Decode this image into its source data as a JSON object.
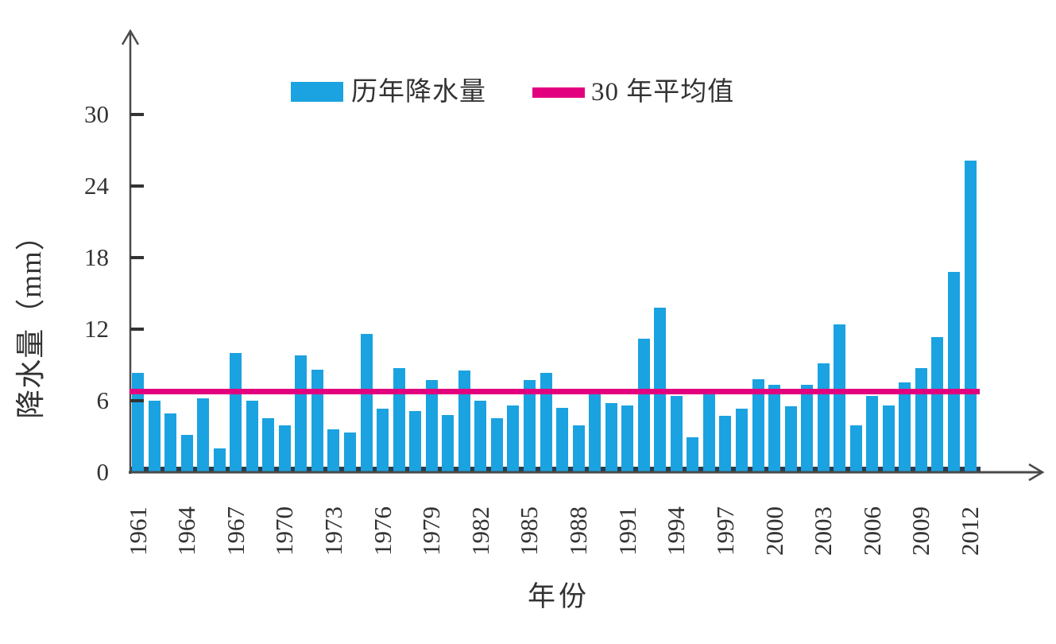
{
  "chart_data": {
    "type": "bar",
    "title": "",
    "xlabel": "年份",
    "ylabel": "降水量（mm）",
    "categories": [
      1961,
      1962,
      1963,
      1964,
      1965,
      1966,
      1967,
      1968,
      1969,
      1970,
      1971,
      1972,
      1973,
      1974,
      1975,
      1976,
      1977,
      1978,
      1979,
      1980,
      1981,
      1982,
      1983,
      1984,
      1985,
      1986,
      1987,
      1988,
      1989,
      1990,
      1991,
      1992,
      1993,
      1994,
      1995,
      1996,
      1997,
      1998,
      1999,
      2000,
      2001,
      2002,
      2003,
      2004,
      2005,
      2006,
      2007,
      2008,
      2009,
      2010,
      2011,
      2012
    ],
    "series": [
      {
        "name": "历年降水量",
        "type": "bar",
        "color": "#1BA2E0",
        "values": [
          8.3,
          6.0,
          4.9,
          3.1,
          6.2,
          2.0,
          10.0,
          6.0,
          4.5,
          3.9,
          9.8,
          8.6,
          3.6,
          3.3,
          11.6,
          5.3,
          8.7,
          5.1,
          7.7,
          4.8,
          8.5,
          6.0,
          4.5,
          5.6,
          7.7,
          8.3,
          5.4,
          3.9,
          6.5,
          5.8,
          5.6,
          11.2,
          13.8,
          6.4,
          2.9,
          6.6,
          4.7,
          5.3,
          7.8,
          7.3,
          5.5,
          7.3,
          9.1,
          12.4,
          3.9,
          6.4,
          5.6,
          7.5,
          8.7,
          11.3,
          16.8,
          26.1
        ]
      },
      {
        "name": "30 年平均值",
        "type": "average-line",
        "color": "#E3007E",
        "value": 6.8
      }
    ],
    "ylim": [
      0,
      36
    ],
    "yticks": [
      0,
      6,
      12,
      18,
      24,
      30
    ],
    "xtick_labels": [
      "1961",
      "1964",
      "1967",
      "1970",
      "1973",
      "1976",
      "1979",
      "1982",
      "1985",
      "1988",
      "1991",
      "1994",
      "1997",
      "2000",
      "2003",
      "2006",
      "2009",
      "2012"
    ],
    "xtick_label_step": 3,
    "legend_position": "top",
    "grid": false
  },
  "colors": {
    "bar": "#1BA2E0",
    "average_line": "#E3007E",
    "axis": "#4a4a4a",
    "text": "#333333"
  }
}
